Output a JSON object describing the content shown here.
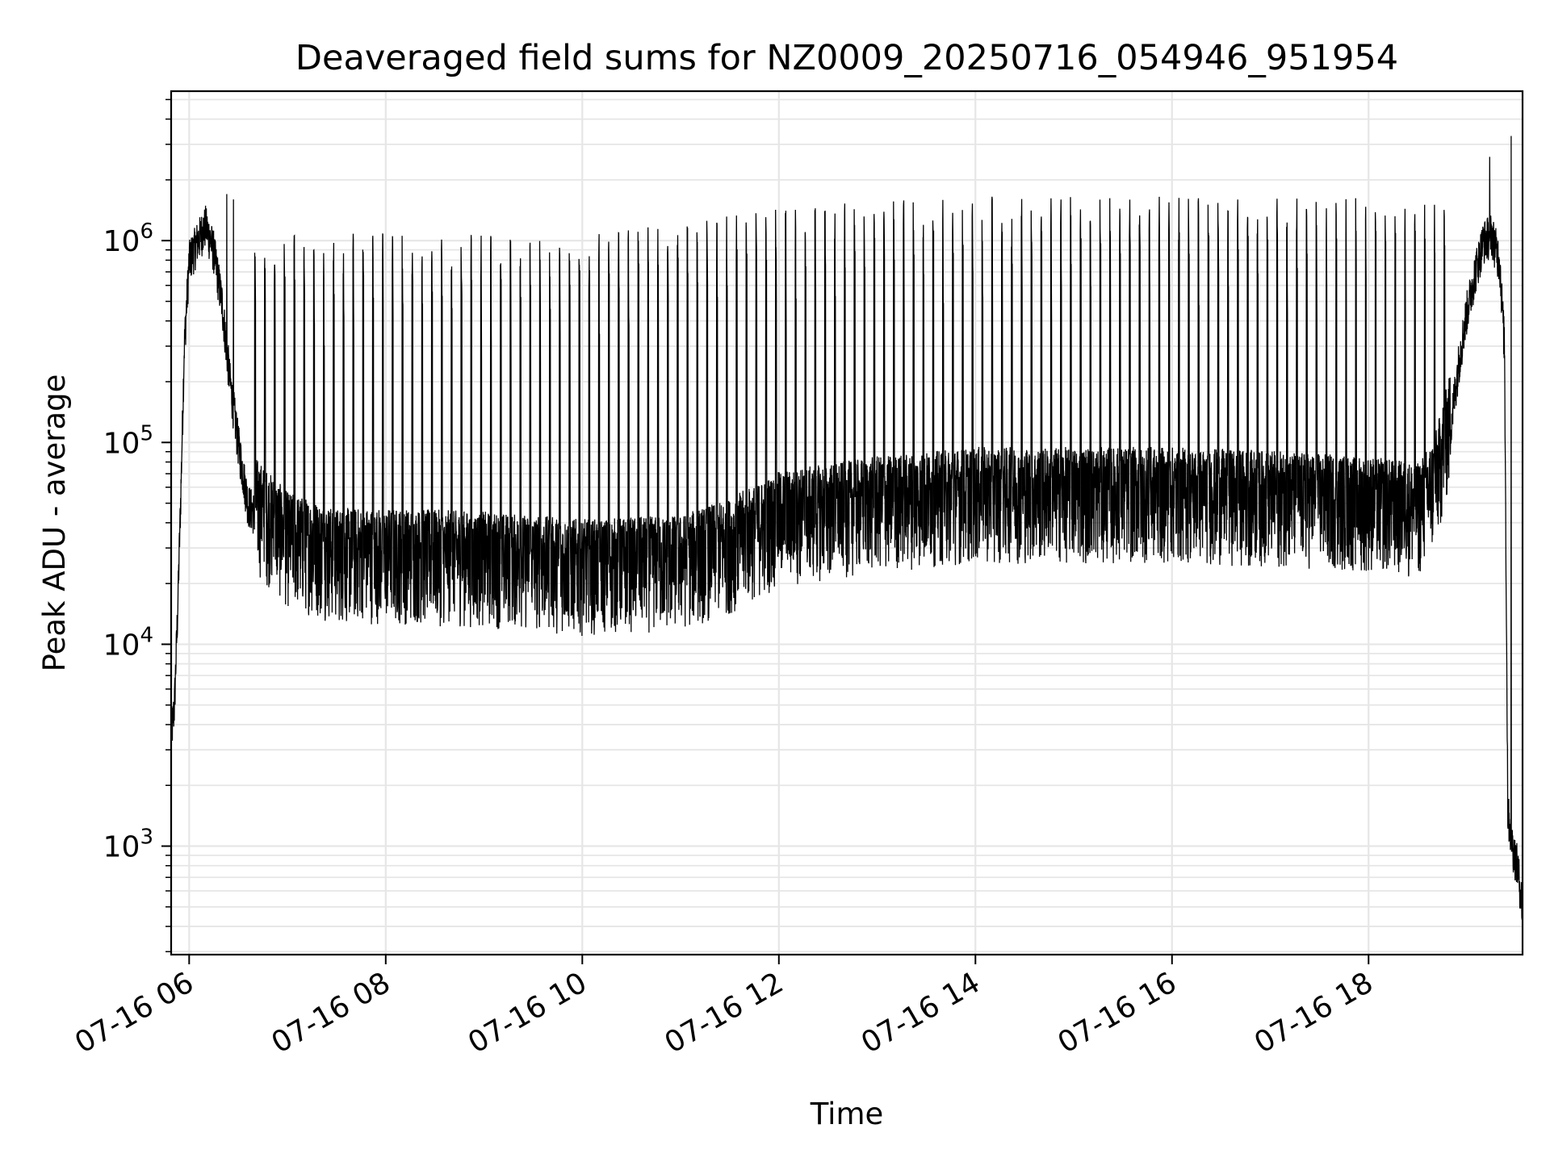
{
  "chart_data": {
    "type": "line",
    "title": "Deaveraged field sums for NZ0009_20250716_054946_951954",
    "xlabel": "Time",
    "ylabel": "Peak ADU - average",
    "yscale": "log",
    "ylim": [
      290,
      5500000
    ],
    "xlim": [
      "2025-07-16 05:49",
      "2025-07-16 19:34"
    ],
    "x_ticks": [
      {
        "t": "2025-07-16 06:00",
        "label": "07-16 06"
      },
      {
        "t": "2025-07-16 08:00",
        "label": "07-16 08"
      },
      {
        "t": "2025-07-16 10:00",
        "label": "07-16 10"
      },
      {
        "t": "2025-07-16 12:00",
        "label": "07-16 12"
      },
      {
        "t": "2025-07-16 14:00",
        "label": "07-16 14"
      },
      {
        "t": "2025-07-16 16:00",
        "label": "07-16 16"
      },
      {
        "t": "2025-07-16 18:00",
        "label": "07-16 18"
      }
    ],
    "y_ticks": [
      {
        "value": 1000,
        "base": "10",
        "exp": "3"
      },
      {
        "value": 10000,
        "base": "10",
        "exp": "4"
      },
      {
        "value": 100000,
        "base": "10",
        "exp": "5"
      },
      {
        "value": 1000000,
        "base": "10",
        "exp": "6"
      }
    ],
    "grid": true,
    "series": [
      {
        "color": "#000000",
        "baseline": {
          "x": [
            "2025-07-16 05:49",
            "2025-07-16 05:51",
            "2025-07-16 05:53",
            "2025-07-16 05:55",
            "2025-07-16 05:57",
            "2025-07-16 06:00",
            "2025-07-16 06:05",
            "2025-07-16 06:10",
            "2025-07-16 06:15",
            "2025-07-16 06:20",
            "2025-07-16 06:25",
            "2025-07-16 06:30",
            "2025-07-16 06:33",
            "2025-07-16 06:36",
            "2025-07-16 06:40",
            "2025-07-16 07:00",
            "2025-07-16 07:30",
            "2025-07-16 08:00",
            "2025-07-16 09:00",
            "2025-07-16 10:00",
            "2025-07-16 11:00",
            "2025-07-16 11:30",
            "2025-07-16 12:00",
            "2025-07-16 13:00",
            "2025-07-16 14:00",
            "2025-07-16 15:00",
            "2025-07-16 16:00",
            "2025-07-16 17:00",
            "2025-07-16 18:00",
            "2025-07-16 18:30",
            "2025-07-16 18:40",
            "2025-07-16 18:50",
            "2025-07-16 18:55",
            "2025-07-16 19:00",
            "2025-07-16 19:05",
            "2025-07-16 19:10",
            "2025-07-16 19:15",
            "2025-07-16 19:20",
            "2025-07-16 19:23",
            "2025-07-16 19:25",
            "2025-07-16 19:28",
            "2025-07-16 19:31",
            "2025-07-16 19:34"
          ],
          "y": [
            3500,
            5000,
            15000,
            60000,
            300000,
            800000,
            1000000,
            1200000,
            900000,
            500000,
            200000,
            100000,
            70000,
            50000,
            45000,
            30000,
            25000,
            25000,
            24000,
            22000,
            23000,
            28000,
            38000,
            45000,
            50000,
            50000,
            50000,
            48000,
            45000,
            42000,
            55000,
            120000,
            250000,
            450000,
            700000,
            1000000,
            1100000,
            800000,
            300000,
            1500,
            1000,
            800,
            500
          ]
        },
        "spikes": {
          "interval_minutes": 6,
          "start": "2025-07-16 06:40",
          "end": "2025-07-16 18:50",
          "peak_y": [
            {
              "t": "2025-07-16 07:00",
              "y": 1000000
            },
            {
              "t": "2025-07-16 08:00",
              "y": 1000000
            },
            {
              "t": "2025-07-16 10:00",
              "y": 950000
            },
            {
              "t": "2025-07-16 12:00",
              "y": 1300000
            },
            {
              "t": "2025-07-16 13:30",
              "y": 1500000
            },
            {
              "t": "2025-07-16 16:00",
              "y": 1500000
            },
            {
              "t": "2025-07-16 18:50",
              "y": 1500000
            }
          ],
          "noise_low_factor": 0.5,
          "noise_high_factor": 1.9
        },
        "notable_points": [
          {
            "t": "2025-07-16 06:23",
            "y": 1700000
          },
          {
            "t": "2025-07-16 06:27",
            "y": 1600000
          },
          {
            "t": "2025-07-16 19:14",
            "y": 2600000
          },
          {
            "t": "2025-07-16 19:27",
            "y": 3300000
          }
        ]
      }
    ]
  }
}
